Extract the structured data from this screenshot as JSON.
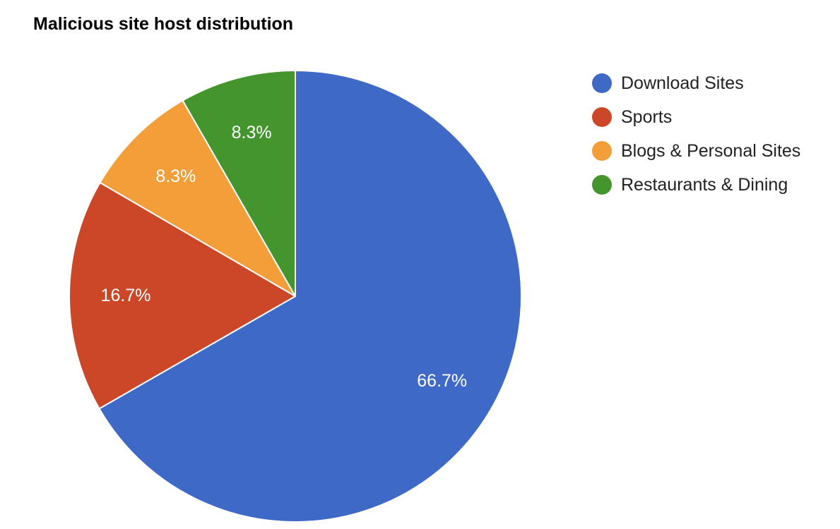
{
  "chart_data": {
    "type": "pie",
    "title": "Malicious site host distribution",
    "categories": [
      "Download Sites",
      "Sports",
      "Blogs & Personal Sites",
      "Restaurants & Dining"
    ],
    "values": [
      66.7,
      16.7,
      8.3,
      8.3
    ],
    "labels": [
      "66.7%",
      "16.7%",
      "8.3%",
      "8.3%"
    ],
    "colors": [
      "#3e69c6",
      "#cc4628",
      "#f39e38",
      "#45952f"
    ],
    "start_angle_deg": 0,
    "direction": "clockwise",
    "legend_position": "right"
  },
  "legend": {
    "items": [
      {
        "label": "Download Sites",
        "color": "#3e69c6"
      },
      {
        "label": "Sports",
        "color": "#cc4628"
      },
      {
        "label": "Blogs & Personal Sites",
        "color": "#f39e38"
      },
      {
        "label": "Restaurants & Dining",
        "color": "#45952f"
      }
    ]
  }
}
